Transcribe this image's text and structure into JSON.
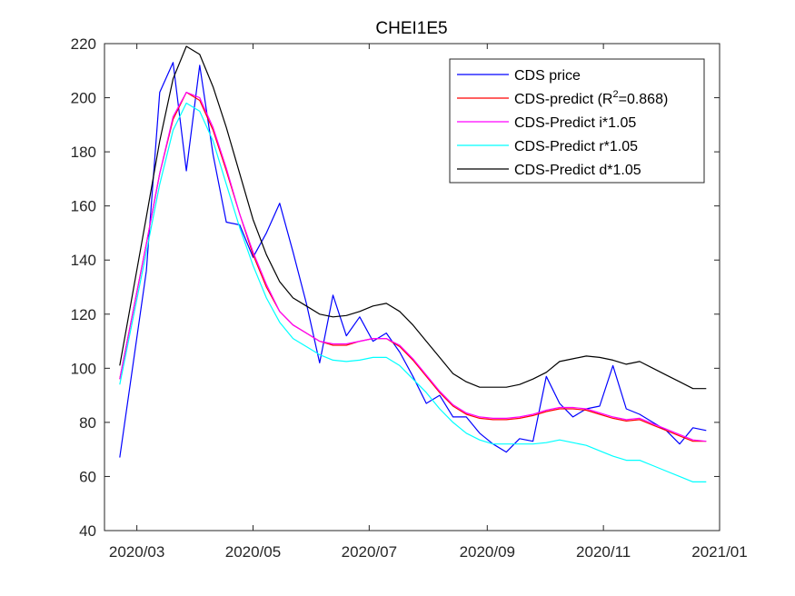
{
  "chart_data": {
    "type": "line",
    "title": "CHEI1E5",
    "xlabel": "",
    "ylabel": "",
    "x_axis": {
      "range": [
        "2020-02-13",
        "2021-01-01"
      ],
      "ticks": [
        "2020-03-01",
        "2020-05-01",
        "2020-07-01",
        "2020-09-01",
        "2020-11-01",
        "2021-01-01"
      ],
      "tick_labels": [
        "2020/03",
        "2020/05",
        "2020/07",
        "2020/09",
        "2020/11",
        "2021/01"
      ]
    },
    "y_axis": {
      "range": [
        40,
        220
      ],
      "ticks": [
        40,
        60,
        80,
        100,
        120,
        140,
        160,
        180,
        200,
        220
      ],
      "tick_labels": [
        "40",
        "60",
        "80",
        "100",
        "120",
        "140",
        "160",
        "180",
        "200",
        "220"
      ]
    },
    "grid": false,
    "legend_position": "top-right",
    "legend_superscript": "2",
    "series": [
      {
        "name": "CDS price",
        "color": "#0000ff",
        "points": [
          [
            "2020-02-21",
            67
          ],
          [
            "2020-03-06",
            136
          ],
          [
            "2020-03-13",
            202
          ],
          [
            "2020-03-20",
            213
          ],
          [
            "2020-03-27",
            173
          ],
          [
            "2020-04-03",
            212
          ],
          [
            "2020-04-10",
            179
          ],
          [
            "2020-04-17",
            154
          ],
          [
            "2020-04-24",
            153
          ],
          [
            "2020-05-01",
            141
          ],
          [
            "2020-05-08",
            150
          ],
          [
            "2020-05-15",
            161
          ],
          [
            "2020-05-22",
            143
          ],
          [
            "2020-05-29",
            124
          ],
          [
            "2020-06-05",
            102
          ],
          [
            "2020-06-12",
            127
          ],
          [
            "2020-06-19",
            112
          ],
          [
            "2020-06-26",
            119
          ],
          [
            "2020-07-03",
            110
          ],
          [
            "2020-07-10",
            113
          ],
          [
            "2020-07-17",
            106
          ],
          [
            "2020-07-24",
            97
          ],
          [
            "2020-07-31",
            87
          ],
          [
            "2020-08-07",
            90
          ],
          [
            "2020-08-14",
            82
          ],
          [
            "2020-08-21",
            82
          ],
          [
            "2020-08-28",
            76
          ],
          [
            "2020-09-04",
            72
          ],
          [
            "2020-09-11",
            69
          ],
          [
            "2020-09-18",
            74
          ],
          [
            "2020-09-25",
            73
          ],
          [
            "2020-10-02",
            97
          ],
          [
            "2020-10-09",
            87
          ],
          [
            "2020-10-16",
            82
          ],
          [
            "2020-10-23",
            85
          ],
          [
            "2020-10-30",
            86
          ],
          [
            "2020-11-06",
            101
          ],
          [
            "2020-11-13",
            85
          ],
          [
            "2020-11-20",
            83
          ],
          [
            "2020-11-27",
            80
          ],
          [
            "2020-12-04",
            77
          ],
          [
            "2020-12-11",
            72
          ],
          [
            "2020-12-18",
            78
          ],
          [
            "2020-12-25",
            77
          ]
        ]
      },
      {
        "name": "CDS-predict (R^2=0.868)",
        "label_parts": [
          "CDS-predict (R",
          "2",
          "=0.868)"
        ],
        "color": "#ff0000",
        "points": [
          [
            "2020-02-21",
            96
          ],
          [
            "2020-03-06",
            146
          ],
          [
            "2020-03-13",
            172
          ],
          [
            "2020-03-20",
            192
          ],
          [
            "2020-03-27",
            202
          ],
          [
            "2020-04-03",
            199
          ],
          [
            "2020-04-10",
            188
          ],
          [
            "2020-04-17",
            173
          ],
          [
            "2020-04-24",
            157
          ],
          [
            "2020-05-01",
            142
          ],
          [
            "2020-05-08",
            130
          ],
          [
            "2020-05-15",
            121
          ],
          [
            "2020-05-22",
            116
          ],
          [
            "2020-05-29",
            113
          ],
          [
            "2020-06-05",
            110
          ],
          [
            "2020-06-12",
            108.5
          ],
          [
            "2020-06-19",
            108.5
          ],
          [
            "2020-06-26",
            110
          ],
          [
            "2020-07-03",
            111
          ],
          [
            "2020-07-10",
            111
          ],
          [
            "2020-07-17",
            108
          ],
          [
            "2020-07-24",
            103
          ],
          [
            "2020-07-31",
            97
          ],
          [
            "2020-08-07",
            91
          ],
          [
            "2020-08-14",
            86
          ],
          [
            "2020-08-21",
            83
          ],
          [
            "2020-08-28",
            81.5
          ],
          [
            "2020-09-04",
            81
          ],
          [
            "2020-09-11",
            81
          ],
          [
            "2020-09-18",
            81.5
          ],
          [
            "2020-09-25",
            82.5
          ],
          [
            "2020-10-02",
            84
          ],
          [
            "2020-10-09",
            85
          ],
          [
            "2020-10-16",
            85
          ],
          [
            "2020-10-23",
            84.5
          ],
          [
            "2020-10-30",
            83
          ],
          [
            "2020-11-06",
            81.5
          ],
          [
            "2020-11-13",
            80.5
          ],
          [
            "2020-11-20",
            81
          ],
          [
            "2020-11-27",
            79
          ],
          [
            "2020-12-04",
            77
          ],
          [
            "2020-12-11",
            75
          ],
          [
            "2020-12-18",
            73
          ],
          [
            "2020-12-25",
            73
          ]
        ]
      },
      {
        "name": "CDS-Predict i*1.05",
        "color": "#ff00ff",
        "points": [
          [
            "2020-02-21",
            96
          ],
          [
            "2020-03-06",
            146
          ],
          [
            "2020-03-13",
            172
          ],
          [
            "2020-03-20",
            193
          ],
          [
            "2020-03-27",
            202
          ],
          [
            "2020-04-03",
            200
          ],
          [
            "2020-04-10",
            189
          ],
          [
            "2020-04-17",
            174
          ],
          [
            "2020-04-24",
            157
          ],
          [
            "2020-05-01",
            143
          ],
          [
            "2020-05-08",
            131
          ],
          [
            "2020-05-15",
            121
          ],
          [
            "2020-05-22",
            116
          ],
          [
            "2020-05-29",
            113
          ],
          [
            "2020-06-05",
            110
          ],
          [
            "2020-06-12",
            109
          ],
          [
            "2020-06-19",
            109
          ],
          [
            "2020-06-26",
            110
          ],
          [
            "2020-07-03",
            111
          ],
          [
            "2020-07-10",
            111
          ],
          [
            "2020-07-17",
            108.5
          ],
          [
            "2020-07-24",
            103.5
          ],
          [
            "2020-07-31",
            97.5
          ],
          [
            "2020-08-07",
            91.5
          ],
          [
            "2020-08-14",
            86.5
          ],
          [
            "2020-08-21",
            83.5
          ],
          [
            "2020-08-28",
            82
          ],
          [
            "2020-09-04",
            81.5
          ],
          [
            "2020-09-11",
            81.5
          ],
          [
            "2020-09-18",
            82
          ],
          [
            "2020-09-25",
            83
          ],
          [
            "2020-10-02",
            84.5
          ],
          [
            "2020-10-09",
            85.5
          ],
          [
            "2020-10-16",
            85.5
          ],
          [
            "2020-10-23",
            85
          ],
          [
            "2020-10-30",
            83.5
          ],
          [
            "2020-11-06",
            82
          ],
          [
            "2020-11-13",
            81
          ],
          [
            "2020-11-20",
            81.5
          ],
          [
            "2020-11-27",
            79.5
          ],
          [
            "2020-12-04",
            77.5
          ],
          [
            "2020-12-11",
            75.5
          ],
          [
            "2020-12-18",
            73.5
          ],
          [
            "2020-12-25",
            73
          ]
        ]
      },
      {
        "name": "CDS-Predict r*1.05",
        "color": "#00ffff",
        "points": [
          [
            "2020-02-21",
            94
          ],
          [
            "2020-03-06",
            143
          ],
          [
            "2020-03-13",
            168
          ],
          [
            "2020-03-20",
            188
          ],
          [
            "2020-03-27",
            198
          ],
          [
            "2020-04-03",
            195
          ],
          [
            "2020-04-10",
            184
          ],
          [
            "2020-04-17",
            168
          ],
          [
            "2020-04-24",
            152
          ],
          [
            "2020-05-01",
            138
          ],
          [
            "2020-05-08",
            126
          ],
          [
            "2020-05-15",
            117
          ],
          [
            "2020-05-22",
            111
          ],
          [
            "2020-05-29",
            108
          ],
          [
            "2020-06-05",
            105
          ],
          [
            "2020-06-12",
            103
          ],
          [
            "2020-06-19",
            102.5
          ],
          [
            "2020-06-26",
            103
          ],
          [
            "2020-07-03",
            104
          ],
          [
            "2020-07-10",
            104
          ],
          [
            "2020-07-17",
            101
          ],
          [
            "2020-07-24",
            96
          ],
          [
            "2020-07-31",
            91
          ],
          [
            "2020-08-07",
            85
          ],
          [
            "2020-08-14",
            80
          ],
          [
            "2020-08-21",
            76
          ],
          [
            "2020-08-28",
            73.5
          ],
          [
            "2020-09-04",
            72
          ],
          [
            "2020-09-11",
            72
          ],
          [
            "2020-09-18",
            72
          ],
          [
            "2020-09-25",
            72
          ],
          [
            "2020-10-02",
            72.5
          ],
          [
            "2020-10-09",
            73.5
          ],
          [
            "2020-10-16",
            72.5
          ],
          [
            "2020-10-23",
            71.5
          ],
          [
            "2020-10-30",
            69.5
          ],
          [
            "2020-11-06",
            67.5
          ],
          [
            "2020-11-13",
            66
          ],
          [
            "2020-11-20",
            66
          ],
          [
            "2020-11-27",
            64
          ],
          [
            "2020-12-04",
            62
          ],
          [
            "2020-12-11",
            60
          ],
          [
            "2020-12-18",
            58
          ],
          [
            "2020-12-25",
            58
          ]
        ]
      },
      {
        "name": "CDS-Predict d*1.05",
        "color": "#000000",
        "points": [
          [
            "2020-02-21",
            101
          ],
          [
            "2020-03-06",
            156
          ],
          [
            "2020-03-13",
            184
          ],
          [
            "2020-03-20",
            207
          ],
          [
            "2020-03-27",
            219
          ],
          [
            "2020-04-03",
            216
          ],
          [
            "2020-04-10",
            204
          ],
          [
            "2020-04-17",
            189
          ],
          [
            "2020-04-24",
            172
          ],
          [
            "2020-05-01",
            155
          ],
          [
            "2020-05-08",
            142
          ],
          [
            "2020-05-15",
            132
          ],
          [
            "2020-05-22",
            126
          ],
          [
            "2020-05-29",
            123
          ],
          [
            "2020-06-05",
            120
          ],
          [
            "2020-06-12",
            119
          ],
          [
            "2020-06-19",
            119.5
          ],
          [
            "2020-06-26",
            121
          ],
          [
            "2020-07-03",
            123
          ],
          [
            "2020-07-10",
            124
          ],
          [
            "2020-07-17",
            121
          ],
          [
            "2020-07-24",
            116
          ],
          [
            "2020-07-31",
            110
          ],
          [
            "2020-08-07",
            104
          ],
          [
            "2020-08-14",
            98
          ],
          [
            "2020-08-21",
            95
          ],
          [
            "2020-08-28",
            93
          ],
          [
            "2020-09-04",
            93
          ],
          [
            "2020-09-11",
            93
          ],
          [
            "2020-09-18",
            94
          ],
          [
            "2020-09-25",
            96
          ],
          [
            "2020-10-02",
            98.5
          ],
          [
            "2020-10-09",
            102.5
          ],
          [
            "2020-10-16",
            103.5
          ],
          [
            "2020-10-23",
            104.5
          ],
          [
            "2020-10-30",
            104
          ],
          [
            "2020-11-06",
            103
          ],
          [
            "2020-11-13",
            101.5
          ],
          [
            "2020-11-20",
            102.5
          ],
          [
            "2020-11-27",
            100
          ],
          [
            "2020-12-04",
            97.5
          ],
          [
            "2020-12-11",
            95
          ],
          [
            "2020-12-18",
            92.5
          ],
          [
            "2020-12-25",
            92.5
          ]
        ]
      }
    ]
  }
}
